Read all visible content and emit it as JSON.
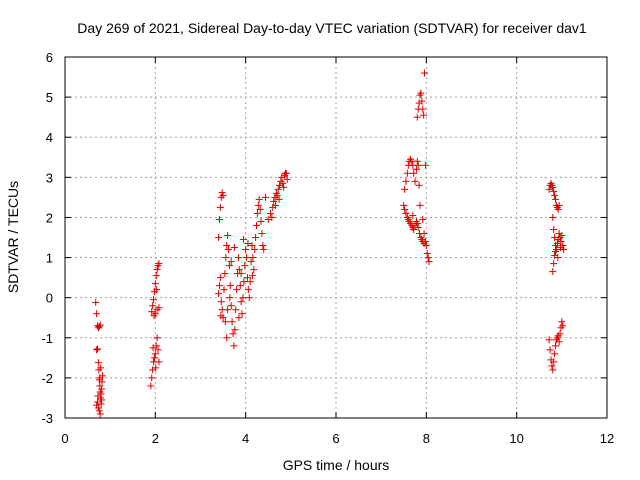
{
  "chart_data": {
    "type": "scatter",
    "title": "Day 269 of 2021, Sidereal Day-to-day VTEC variation (SDTVAR) for receiver dav1",
    "xlabel": "GPS time / hours",
    "ylabel": "SDTVAR / TECUs",
    "xlim": [
      0,
      12
    ],
    "ylim": [
      -3,
      6
    ],
    "xticks": [
      "0",
      "2",
      "4",
      "6",
      "8",
      "10",
      "12"
    ],
    "yticks": [
      "-3",
      "-2",
      "-1",
      "0",
      "1",
      "2",
      "3",
      "4",
      "5",
      "6"
    ],
    "grid": true,
    "marker": "+",
    "color": "#e00000",
    "series": [
      {
        "name": "",
        "points": [
          [
            0.68,
            -0.12
          ],
          [
            0.7,
            -0.4
          ],
          [
            0.72,
            -0.7
          ],
          [
            0.74,
            -0.75
          ],
          [
            0.76,
            -0.72
          ],
          [
            0.78,
            -0.68
          ],
          [
            0.7,
            -1.3
          ],
          [
            0.72,
            -1.28
          ],
          [
            0.74,
            -1.62
          ],
          [
            0.75,
            -1.8
          ],
          [
            0.76,
            -2.05
          ],
          [
            0.77,
            -2.2
          ],
          [
            0.78,
            -2.35
          ],
          [
            0.79,
            -2.5
          ],
          [
            0.8,
            -2.65
          ],
          [
            0.81,
            -2.55
          ],
          [
            0.72,
            -2.6
          ],
          [
            0.74,
            -2.75
          ],
          [
            0.76,
            -2.82
          ],
          [
            0.78,
            -2.9
          ],
          [
            0.8,
            -2.4
          ],
          [
            0.82,
            -2.1
          ],
          [
            0.83,
            -1.95
          ],
          [
            0.7,
            -2.68
          ],
          [
            0.73,
            -2.45
          ],
          [
            0.77,
            -2.0
          ],
          [
            0.79,
            -1.75
          ],
          [
            0.81,
            -2.28
          ],
          [
            1.9,
            -2.2
          ],
          [
            1.92,
            -2.0
          ],
          [
            1.94,
            -1.8
          ],
          [
            1.96,
            -1.6
          ],
          [
            1.98,
            -1.5
          ],
          [
            2.0,
            -1.4
          ],
          [
            2.02,
            -1.2
          ],
          [
            2.04,
            -1.0
          ],
          [
            2.06,
            -1.3
          ],
          [
            2.08,
            -1.6
          ],
          [
            2.01,
            -1.75
          ],
          [
            1.95,
            -1.25
          ],
          [
            1.92,
            -0.35
          ],
          [
            1.94,
            -0.2
          ],
          [
            1.96,
            -0.05
          ],
          [
            1.98,
            0.15
          ],
          [
            2.0,
            0.35
          ],
          [
            2.02,
            0.55
          ],
          [
            2.04,
            0.7
          ],
          [
            2.06,
            0.8
          ],
          [
            2.08,
            0.85
          ],
          [
            2.0,
            -0.4
          ],
          [
            2.04,
            -0.3
          ],
          [
            2.08,
            -0.25
          ],
          [
            1.97,
            -0.45
          ],
          [
            2.03,
            0.2
          ],
          [
            3.4,
            1.5
          ],
          [
            3.42,
            1.95
          ],
          [
            3.44,
            2.25
          ],
          [
            3.46,
            2.5
          ],
          [
            3.48,
            2.62
          ],
          [
            3.5,
            2.55
          ],
          [
            3.4,
            0.1
          ],
          [
            3.42,
            0.3
          ],
          [
            3.44,
            0.5
          ],
          [
            3.46,
            -0.1
          ],
          [
            3.48,
            -0.3
          ],
          [
            3.5,
            -0.5
          ],
          [
            3.52,
            0.2
          ],
          [
            3.54,
            0.6
          ],
          [
            3.56,
            1.0
          ],
          [
            3.58,
            1.3
          ],
          [
            3.6,
            1.55
          ],
          [
            3.62,
            1.2
          ],
          [
            3.64,
            0.8
          ],
          [
            3.66,
            0.3
          ],
          [
            3.68,
            -0.2
          ],
          [
            3.7,
            -0.6
          ],
          [
            3.72,
            -0.9
          ],
          [
            3.74,
            -1.2
          ],
          [
            3.76,
            -0.8
          ],
          [
            3.78,
            -0.3
          ],
          [
            3.8,
            0.2
          ],
          [
            3.82,
            0.6
          ],
          [
            3.84,
            1.0
          ],
          [
            3.86,
            0.7
          ],
          [
            3.88,
            0.3
          ],
          [
            3.9,
            -0.1
          ],
          [
            3.92,
            -0.4
          ],
          [
            3.94,
            0.0
          ],
          [
            3.96,
            0.4
          ],
          [
            3.98,
            0.8
          ],
          [
            4.0,
            1.2
          ],
          [
            4.02,
            1.0
          ],
          [
            4.04,
            0.5
          ],
          [
            4.06,
            0.2
          ],
          [
            4.08,
            0.0
          ],
          [
            4.1,
            0.4
          ],
          [
            4.12,
            0.9
          ],
          [
            4.14,
            1.3
          ],
          [
            4.16,
            1.0
          ],
          [
            4.18,
            0.7
          ],
          [
            4.2,
            1.2
          ],
          [
            4.22,
            1.5
          ],
          [
            4.24,
            1.8
          ],
          [
            4.26,
            2.1
          ],
          [
            4.28,
            2.3
          ],
          [
            4.3,
            2.45
          ],
          [
            4.32,
            2.2
          ],
          [
            4.34,
            1.9
          ],
          [
            4.36,
            1.6
          ],
          [
            4.38,
            1.3
          ],
          [
            4.4,
            1.2
          ],
          [
            4.44,
            2.5
          ],
          [
            3.55,
            -0.6
          ],
          [
            3.6,
            -0.3
          ],
          [
            3.65,
            0.0
          ],
          [
            3.75,
            1.25
          ],
          [
            3.85,
            -0.5
          ],
          [
            3.95,
            1.45
          ],
          [
            4.05,
            1.35
          ],
          [
            4.15,
            0.55
          ],
          [
            3.45,
            -0.45
          ],
          [
            3.58,
            -1.0
          ],
          [
            3.68,
            0.9
          ],
          [
            3.9,
            0.6
          ],
          [
            4.5,
            1.95
          ],
          [
            4.55,
            2.1
          ],
          [
            4.6,
            2.25
          ],
          [
            4.62,
            2.4
          ],
          [
            4.65,
            2.5
          ],
          [
            4.68,
            2.6
          ],
          [
            4.7,
            2.55
          ],
          [
            4.72,
            2.7
          ],
          [
            4.75,
            2.8
          ],
          [
            4.78,
            2.9
          ],
          [
            4.8,
            3.0
          ],
          [
            4.82,
            2.85
          ],
          [
            4.84,
            2.75
          ],
          [
            4.86,
            3.05
          ],
          [
            4.88,
            3.1
          ],
          [
            4.9,
            3.1
          ],
          [
            4.92,
            2.95
          ],
          [
            4.58,
            2.0
          ],
          [
            4.66,
            2.3
          ],
          [
            4.74,
            2.45
          ],
          [
            7.5,
            2.3
          ],
          [
            7.52,
            2.2
          ],
          [
            7.55,
            2.1
          ],
          [
            7.58,
            2.0
          ],
          [
            7.6,
            1.95
          ],
          [
            7.62,
            1.9
          ],
          [
            7.65,
            1.85
          ],
          [
            7.68,
            1.8
          ],
          [
            7.7,
            1.75
          ],
          [
            7.72,
            1.7
          ],
          [
            7.75,
            1.8
          ],
          [
            7.78,
            1.9
          ],
          [
            7.8,
            1.85
          ],
          [
            7.82,
            1.75
          ],
          [
            7.85,
            1.6
          ],
          [
            7.88,
            1.5
          ],
          [
            7.9,
            1.45
          ],
          [
            7.92,
            1.4
          ],
          [
            7.95,
            1.35
          ],
          [
            7.98,
            1.4
          ],
          [
            8.0,
            1.3
          ],
          [
            8.02,
            1.1
          ],
          [
            8.04,
            1.0
          ],
          [
            8.06,
            0.9
          ],
          [
            7.52,
            2.7
          ],
          [
            7.55,
            2.9
          ],
          [
            7.58,
            3.1
          ],
          [
            7.6,
            3.3
          ],
          [
            7.62,
            3.4
          ],
          [
            7.65,
            3.45
          ],
          [
            7.68,
            3.4
          ],
          [
            7.7,
            3.3
          ],
          [
            7.72,
            3.1
          ],
          [
            7.75,
            2.9
          ],
          [
            7.78,
            3.2
          ],
          [
            7.8,
            3.4
          ],
          [
            7.82,
            3.3
          ],
          [
            7.84,
            2.8
          ],
          [
            7.86,
            2.3
          ],
          [
            7.8,
            4.5
          ],
          [
            7.82,
            4.7
          ],
          [
            7.84,
            4.85
          ],
          [
            7.86,
            5.05
          ],
          [
            7.88,
            5.1
          ],
          [
            7.9,
            4.9
          ],
          [
            7.92,
            4.7
          ],
          [
            7.94,
            4.55
          ],
          [
            7.96,
            5.6
          ],
          [
            7.98,
            3.3
          ],
          [
            7.92,
            1.95
          ],
          [
            7.7,
            2.05
          ],
          [
            7.95,
            1.6
          ],
          [
            10.72,
            2.7
          ],
          [
            10.74,
            2.8
          ],
          [
            10.76,
            2.85
          ],
          [
            10.78,
            2.8
          ],
          [
            10.8,
            2.75
          ],
          [
            10.82,
            2.65
          ],
          [
            10.84,
            2.55
          ],
          [
            10.86,
            2.45
          ],
          [
            10.88,
            2.3
          ],
          [
            10.9,
            2.25
          ],
          [
            10.92,
            2.2
          ],
          [
            10.94,
            2.3
          ],
          [
            10.8,
            2.0
          ],
          [
            10.82,
            1.7
          ],
          [
            10.84,
            1.5
          ],
          [
            10.86,
            1.3
          ],
          [
            10.88,
            1.2
          ],
          [
            10.9,
            1.35
          ],
          [
            10.92,
            1.45
          ],
          [
            10.94,
            1.6
          ],
          [
            10.96,
            1.5
          ],
          [
            10.98,
            1.4
          ],
          [
            11.0,
            1.55
          ],
          [
            11.02,
            1.3
          ],
          [
            11.04,
            1.2
          ],
          [
            10.8,
            0.65
          ],
          [
            10.82,
            0.85
          ],
          [
            10.84,
            1.05
          ],
          [
            10.86,
            1.15
          ],
          [
            10.72,
            -1.05
          ],
          [
            10.74,
            -1.3
          ],
          [
            10.76,
            -1.55
          ],
          [
            10.78,
            -1.7
          ],
          [
            10.8,
            -1.8
          ],
          [
            10.82,
            -1.6
          ],
          [
            10.84,
            -1.4
          ],
          [
            10.86,
            -1.2
          ],
          [
            10.88,
            -1.05
          ],
          [
            10.9,
            -1.0
          ],
          [
            10.92,
            -0.95
          ],
          [
            10.94,
            -1.1
          ],
          [
            10.96,
            -0.9
          ],
          [
            10.98,
            -0.75
          ],
          [
            11.0,
            -0.6
          ],
          [
            11.02,
            -0.7
          ],
          [
            10.91,
            1.0
          ],
          [
            10.97,
            1.25
          ]
        ]
      }
    ]
  }
}
